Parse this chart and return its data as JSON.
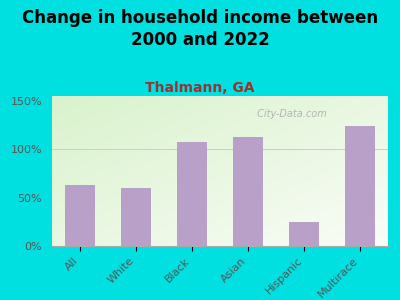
{
  "title": "Change in household income between\n2000 and 2022",
  "subtitle": "Thalmann, GA",
  "categories": [
    "All",
    "White",
    "Black",
    "Asian",
    "Hispanic",
    "Multirace"
  ],
  "values": [
    63,
    60,
    107,
    113,
    25,
    124
  ],
  "bar_color": "#b8a0c8",
  "background_color": "#00e0e0",
  "title_fontsize": 12,
  "subtitle_fontsize": 10,
  "subtitle_color": "#993333",
  "ylabel_ticks": [
    0,
    50,
    100,
    150
  ],
  "ylim": [
    0,
    155
  ],
  "watermark": " City-Data.com",
  "watermark_color": "#aaaaaa",
  "tick_color": "#555555",
  "axis_color": "#aaaaaa",
  "gradient_topleft": [
    0.85,
    0.95,
    0.8
  ],
  "gradient_bottomright": [
    0.98,
    0.99,
    0.97
  ]
}
